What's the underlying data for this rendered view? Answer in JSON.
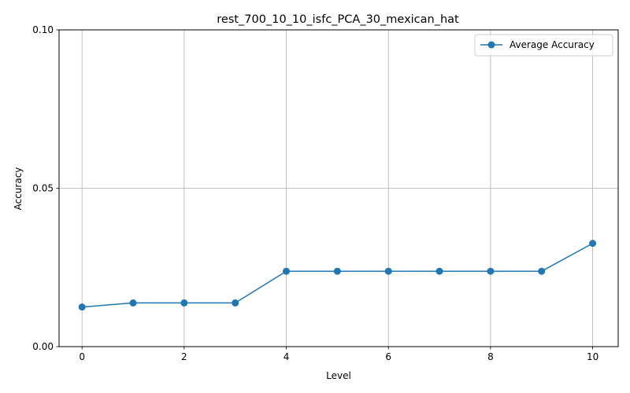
{
  "chart_data": {
    "type": "line",
    "title": "rest_700_10_10_isfc_PCA_30_mexican_hat",
    "xlabel": "Level",
    "ylabel": "Accuracy",
    "xlim": [
      -0.45,
      10.5
    ],
    "ylim": [
      0.0,
      0.1
    ],
    "xticks": [
      0,
      2,
      4,
      6,
      8,
      10
    ],
    "xtick_labels": [
      "0",
      "2",
      "4",
      "6",
      "8",
      "10"
    ],
    "yticks": [
      0.0,
      0.05,
      0.1
    ],
    "ytick_labels": [
      "0.00",
      "0.05",
      "0.10"
    ],
    "grid": true,
    "legend_position": "top-right",
    "series": [
      {
        "name": "Average Accuracy",
        "color": "#1f77b4",
        "marker": "circle",
        "x": [
          0,
          1,
          2,
          3,
          4,
          5,
          6,
          7,
          8,
          9,
          10
        ],
        "y": [
          0.0125,
          0.0138,
          0.0138,
          0.0138,
          0.0238,
          0.0238,
          0.0238,
          0.0238,
          0.0238,
          0.0238,
          0.0326
        ]
      }
    ]
  }
}
